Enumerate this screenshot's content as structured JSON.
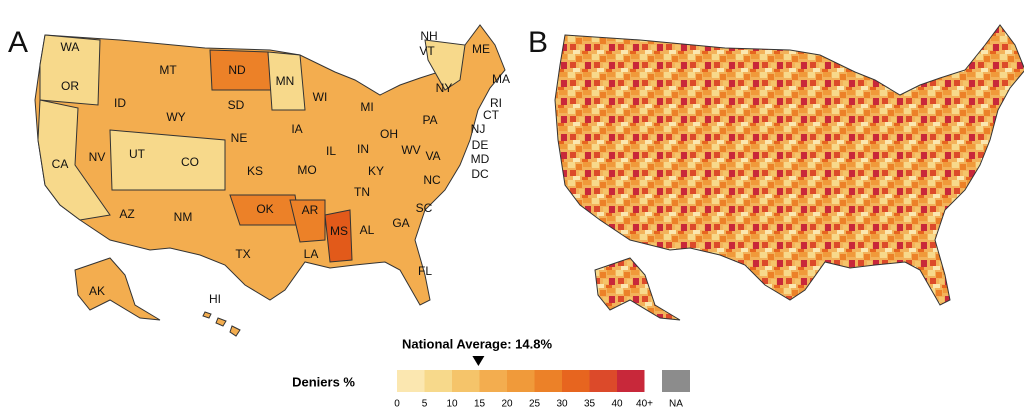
{
  "panels": [
    {
      "label": "A",
      "states": [
        "WA",
        "OR",
        "CA",
        "NV",
        "ID",
        "MT",
        "WY",
        "UT",
        "CO",
        "AZ",
        "NM",
        "ND",
        "SD",
        "NE",
        "KS",
        "OK",
        "TX",
        "MN",
        "IA",
        "MO",
        "AR",
        "LA",
        "WI",
        "IL",
        "MI",
        "IN",
        "OH",
        "KY",
        "TN",
        "MS",
        "AL",
        "GA",
        "FL",
        "SC",
        "NC",
        "VA",
        "WV",
        "PA",
        "NY",
        "ME",
        "NH",
        "VT",
        "MA",
        "RI",
        "CT",
        "NJ",
        "DE",
        "MD",
        "DC",
        "AK",
        "HI"
      ]
    },
    {
      "label": "B"
    }
  ],
  "legend": {
    "title": "Deniers %",
    "ticks": [
      0,
      5,
      10,
      15,
      20,
      25,
      30,
      35,
      40
    ],
    "open_label": "40+",
    "colors": [
      "#fbe7b0",
      "#f7d98b",
      "#f5c46a",
      "#f3ad4f",
      "#f09a3a",
      "#ec8128",
      "#e7651f",
      "#dc4a2a",
      "#c8283a"
    ],
    "na_label": "NA",
    "na_color": "#8c8c8c"
  },
  "national_average": {
    "label": "National Average: 14.8%",
    "value": 14.8
  }
}
